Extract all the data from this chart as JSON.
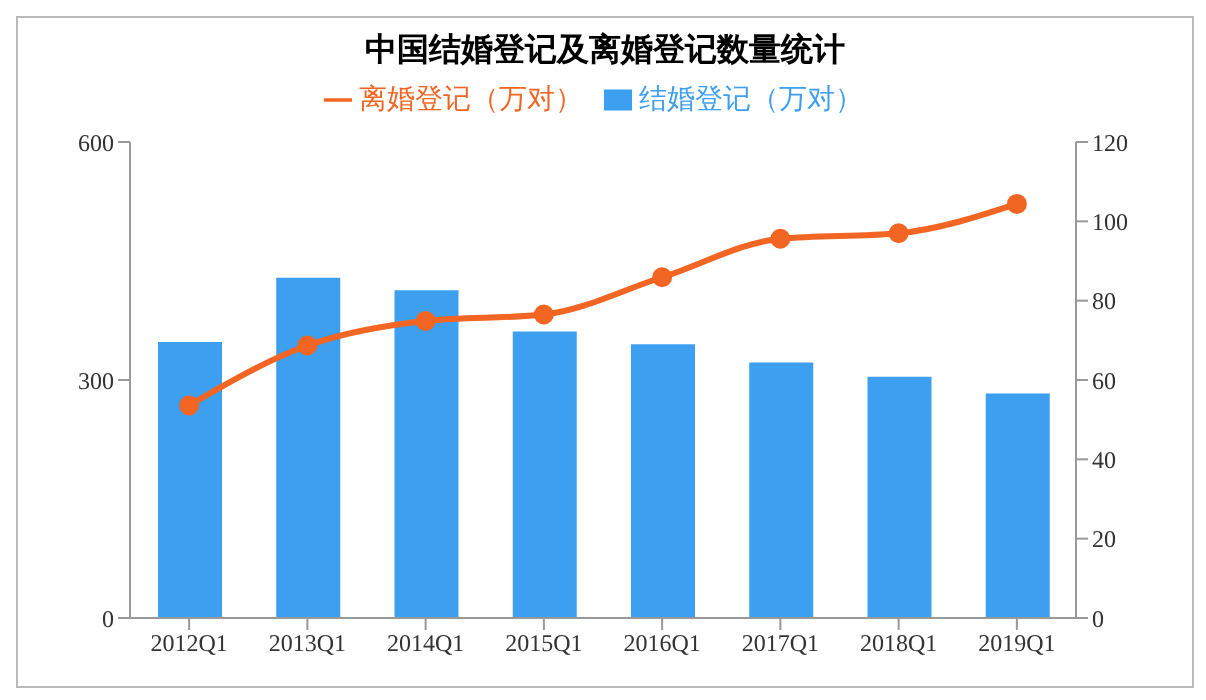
{
  "chart_data": {
    "type": "bar",
    "title": "中国结婚登记及离婚登记数量统计",
    "categories": [
      "2012Q1",
      "2013Q1",
      "2014Q1",
      "2015Q1",
      "2016Q1",
      "2017Q1",
      "2018Q1",
      "2019Q1"
    ],
    "series": [
      {
        "name": "结婚登记（万对）",
        "color": "#3d9ff0",
        "values": [
          348,
          429,
          413,
          361,
          345,
          322,
          304,
          283
        ]
      },
      {
        "name": "离婚登记（万对）",
        "type": "line",
        "axis": "y2",
        "color": "#f26522",
        "values": [
          53.6,
          68.7,
          74.9,
          76.5,
          85.9,
          95.6,
          97.0,
          104.4
        ]
      }
    ],
    "ylim": [
      0,
      600
    ],
    "yticks": [
      0,
      300,
      600
    ],
    "y2lim": [
      0,
      120
    ],
    "y2ticks": [
      0,
      20,
      40,
      60,
      80,
      100,
      120
    ],
    "legend": "top",
    "marker": "circle"
  }
}
